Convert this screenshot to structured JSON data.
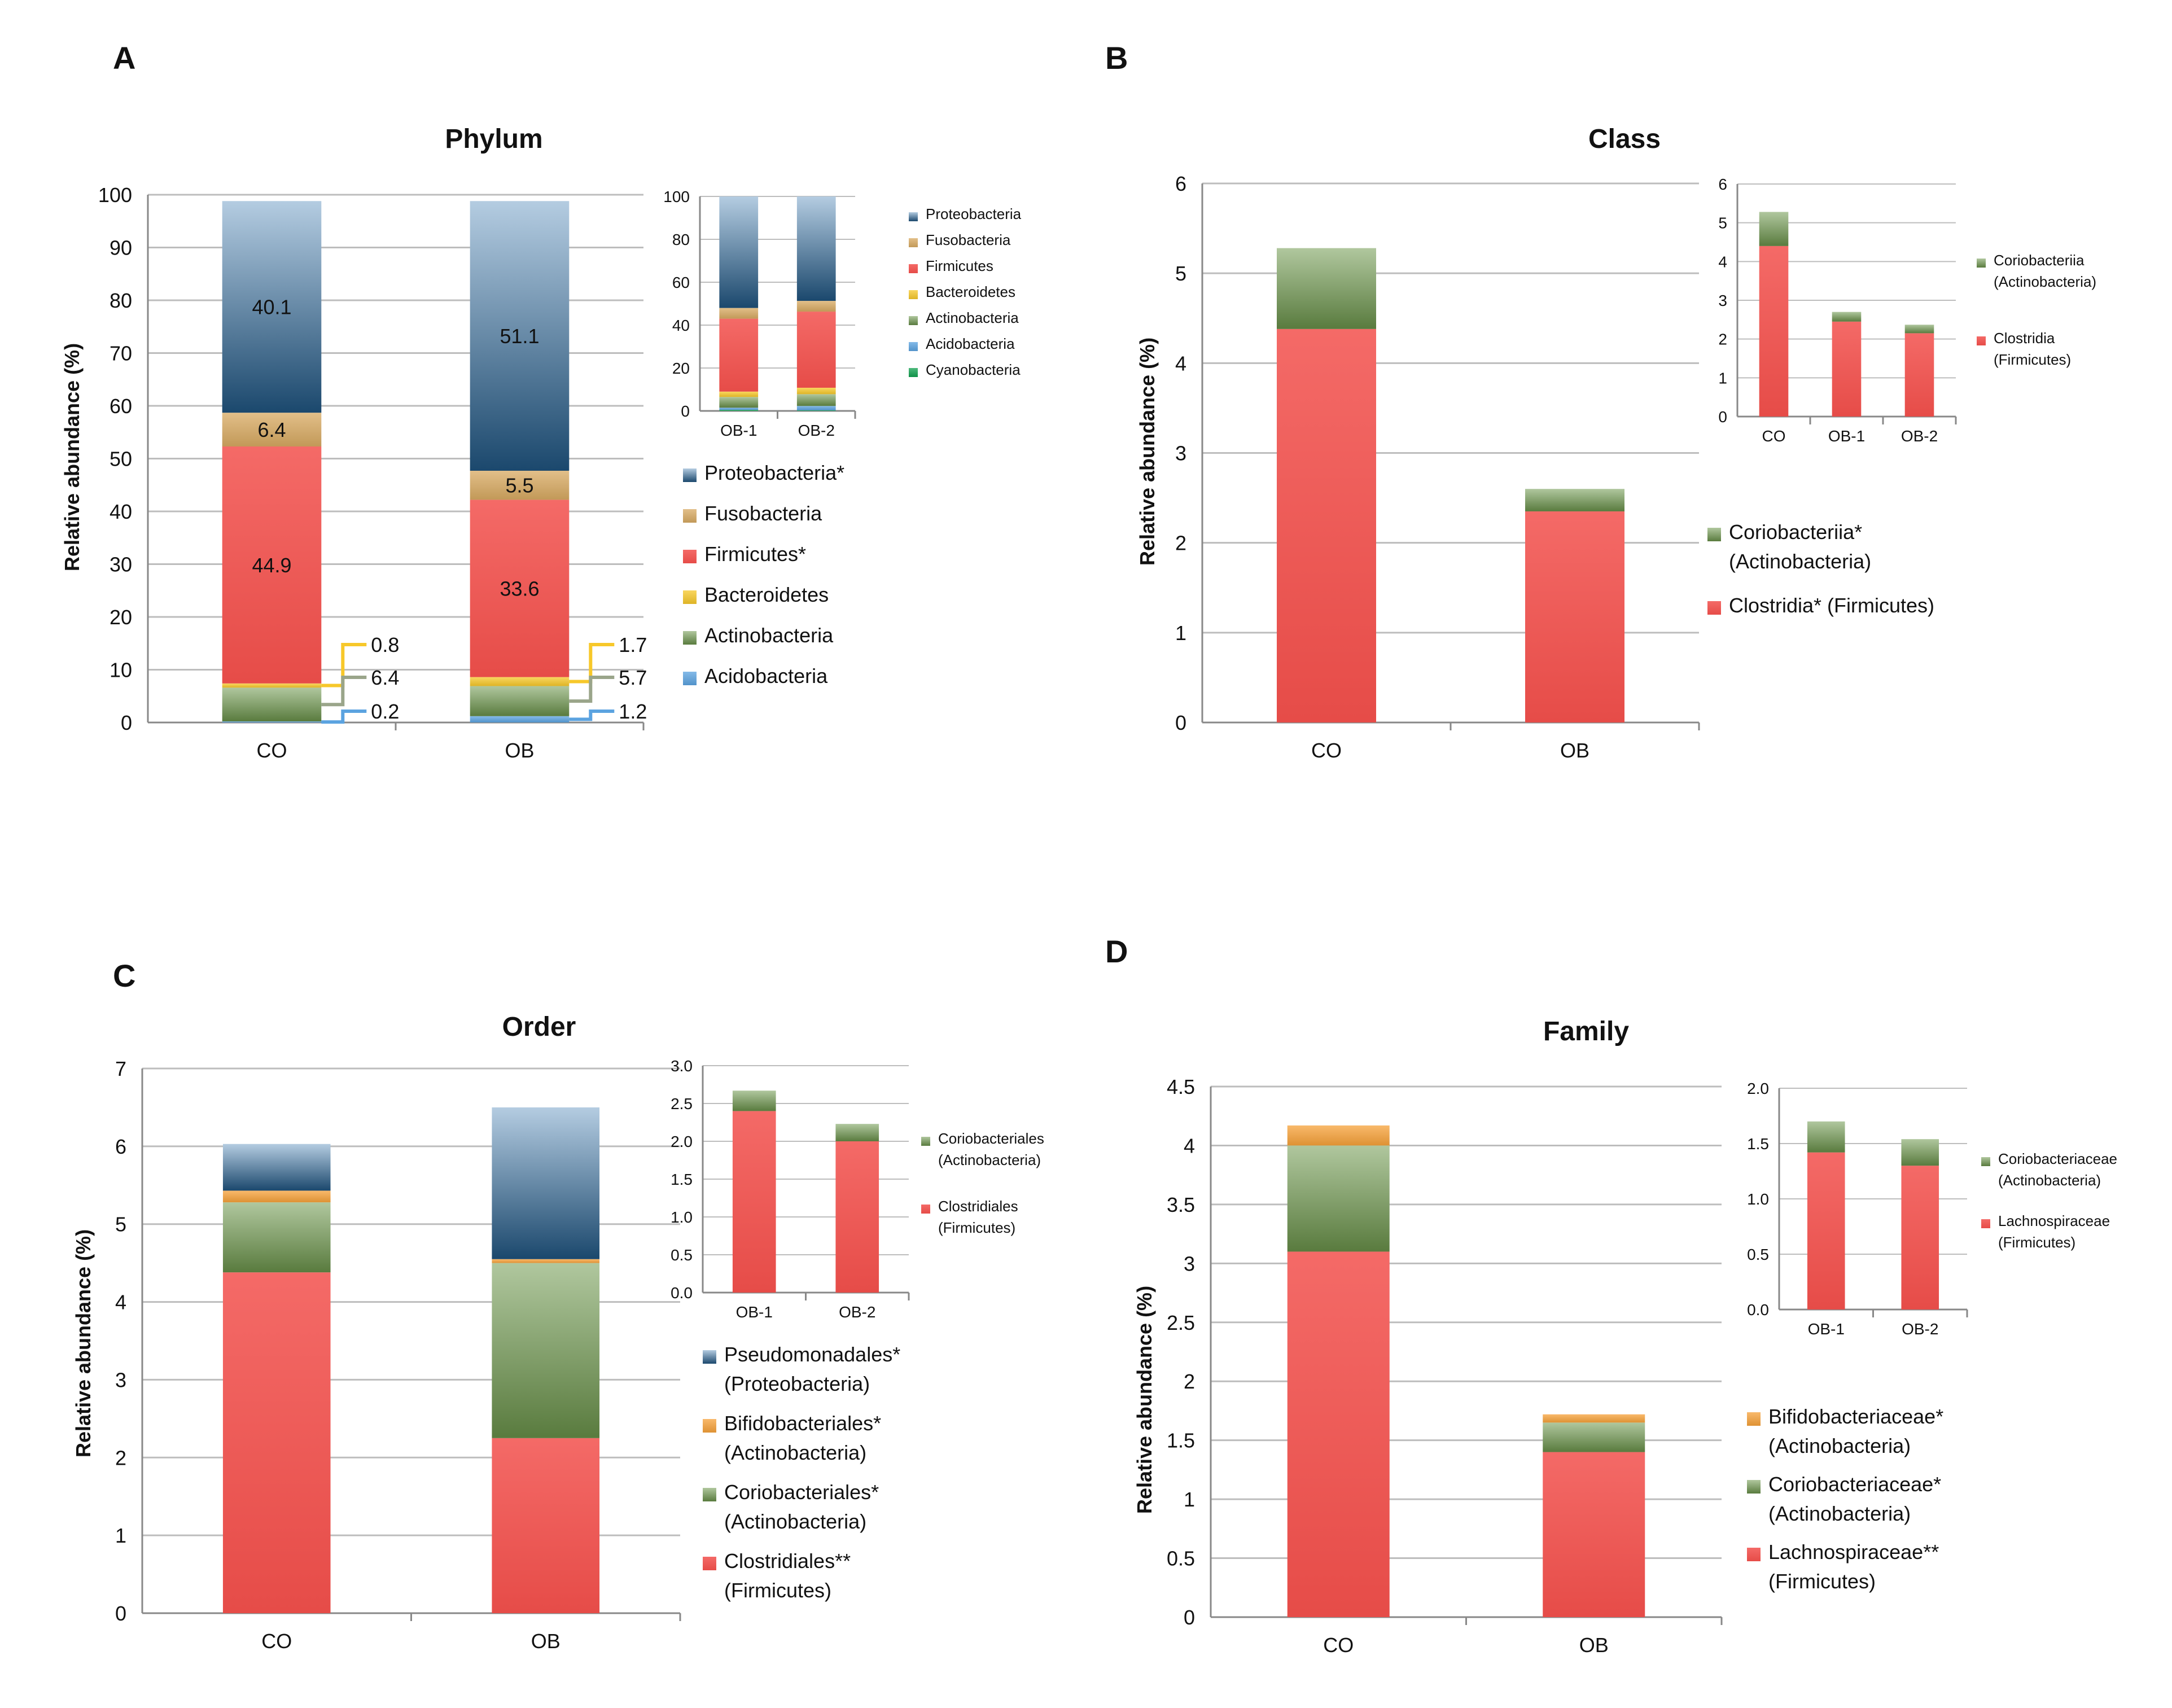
{
  "colors": {
    "Proteobacteria": "#2a6ea8",
    "Fusobacteria": "#d8aa62",
    "Firmicutes": "#f2504c",
    "Bacteroidetes": "#f7c82a",
    "Actinobacteria": "#6f9a4e",
    "Acidobacteria": "#5ba3e0",
    "Cyanobacteria": "#12a150",
    "Bifido": "#f7a23a"
  },
  "chart_data": [
    {
      "panel": "A",
      "title": "Phylum",
      "type": "bar",
      "stacked": true,
      "ylabel": "Relative abundance (%)",
      "ylim": [
        0,
        100
      ],
      "yticks": [
        "0",
        "10",
        "20",
        "30",
        "40",
        "50",
        "60",
        "70",
        "80",
        "90",
        "100"
      ],
      "categories": [
        "CO",
        "OB"
      ],
      "series": [
        {
          "name": "Acidobacteria",
          "color_key": "Acidobacteria",
          "values": [
            0.2,
            1.2
          ]
        },
        {
          "name": "Actinobacteria",
          "color_key": "Actinobacteria",
          "values": [
            6.4,
            5.7
          ]
        },
        {
          "name": "Bacteroidetes",
          "color_key": "Bacteroidetes",
          "values": [
            0.8,
            1.7
          ]
        },
        {
          "name": "Firmicutes*",
          "color_key": "Firmicutes",
          "values": [
            44.9,
            33.6
          ]
        },
        {
          "name": "Fusobacteria",
          "color_key": "Fusobacteria",
          "values": [
            6.4,
            5.5
          ]
        },
        {
          "name": "Proteobacteria*",
          "color_key": "Proteobacteria",
          "values": [
            40.1,
            51.1
          ]
        }
      ],
      "bar_labels": [
        [
          "",
          "",
          "",
          "44.9",
          "6.4",
          "40.1"
        ],
        [
          "",
          "",
          "",
          "33.6",
          "5.5",
          "51.1"
        ]
      ],
      "callouts": [
        [
          "0.8",
          "6.4",
          "0.2"
        ],
        [
          "1.7",
          "5.7",
          "1.2"
        ]
      ],
      "legend": [
        "Proteobacteria*",
        "Fusobacteria",
        "Firmicutes*",
        "Bacteroidetes",
        "Actinobacteria",
        "Acidobacteria"
      ],
      "inset": {
        "ylim": [
          0,
          100
        ],
        "yticks": [
          "0",
          "20",
          "40",
          "60",
          "80",
          "100"
        ],
        "categories": [
          "OB-1",
          "OB-2"
        ],
        "series": [
          {
            "name": "Cyanobacteria",
            "color_key": "Cyanobacteria",
            "values": [
              0.5,
              0.3
            ]
          },
          {
            "name": "Acidobacteria",
            "color_key": "Acidobacteria",
            "values": [
              1.0,
              2.0
            ]
          },
          {
            "name": "Actinobacteria",
            "color_key": "Actinobacteria",
            "values": [
              5.0,
              5.5
            ]
          },
          {
            "name": "Bacteroidetes",
            "color_key": "Bacteroidetes",
            "values": [
              2.5,
              3.0
            ]
          },
          {
            "name": "Firmicutes",
            "color_key": "Firmicutes",
            "values": [
              34.0,
              35.5
            ]
          },
          {
            "name": "Fusobacteria",
            "color_key": "Fusobacteria",
            "values": [
              5.0,
              5.0
            ]
          },
          {
            "name": "Proteobacteria",
            "color_key": "Proteobacteria",
            "values": [
              52.0,
              48.7
            ]
          }
        ],
        "legend": [
          "Proteobacteria",
          "Fusobacteria",
          "Firmicutes",
          "Bacteroidetes",
          "Actinobacteria",
          "Acidobacteria",
          "Cyanobacteria"
        ]
      }
    },
    {
      "panel": "B",
      "title": "Class",
      "type": "bar",
      "stacked": true,
      "ylabel": "Relative abundance (%)",
      "ylim": [
        0,
        6
      ],
      "yticks": [
        "0",
        "1",
        "2",
        "3",
        "4",
        "5",
        "6"
      ],
      "categories": [
        "CO",
        "OB"
      ],
      "series": [
        {
          "name": "Clostridia* (Firmicutes)",
          "color_key": "Firmicutes",
          "values": [
            4.38,
            2.35
          ]
        },
        {
          "name": "Coriobacteriia* (Actinobacteria)",
          "color_key": "Actinobacteria",
          "values": [
            0.9,
            0.25
          ]
        }
      ],
      "legend": [
        [
          "Coriobacteriia*",
          "(Actinobacteria)"
        ],
        [
          "Clostridia* (Firmicutes)"
        ]
      ],
      "inset": {
        "ylim": [
          0,
          6
        ],
        "yticks": [
          "0",
          "1",
          "2",
          "3",
          "4",
          "5",
          "6"
        ],
        "categories": [
          "CO",
          "OB-1",
          "OB-2"
        ],
        "series": [
          {
            "name": "Clostridia",
            "color_key": "Firmicutes",
            "values": [
              4.4,
              2.45,
              2.15
            ]
          },
          {
            "name": "Coriobacteriia",
            "color_key": "Actinobacteria",
            "values": [
              0.88,
              0.25,
              0.22
            ]
          }
        ],
        "legend": [
          [
            "Coriobacteriia",
            "(Actinobacteria)"
          ],
          [
            "Clostridia",
            "(Firmicutes)"
          ]
        ]
      }
    },
    {
      "panel": "C",
      "title": "Order",
      "type": "bar",
      "stacked": true,
      "ylabel": "Relative abundance (%)",
      "ylim": [
        0,
        7
      ],
      "yticks": [
        "0",
        "1",
        "2",
        "3",
        "4",
        "5",
        "6",
        "7"
      ],
      "categories": [
        "CO",
        "OB"
      ],
      "series": [
        {
          "name": "Clostridiales** (Firmicutes)",
          "color_key": "Firmicutes",
          "values": [
            4.38,
            2.25
          ]
        },
        {
          "name": "Coriobacteriales* (Actinobacteria)",
          "color_key": "Actinobacteria",
          "values": [
            0.9,
            2.25
          ]
        },
        {
          "name": "Bifidobacteriales* (Actinobacteria)",
          "color_key": "Bifido",
          "values": [
            0.15,
            0.05
          ]
        },
        {
          "name": "Pseudomonadales* (Proteobacteria)",
          "color_key": "Proteobacteria",
          "values": [
            0.6,
            1.95
          ]
        }
      ],
      "legend": [
        [
          "Pseudomonadales*",
          "(Proteobacteria)"
        ],
        [
          "Bifidobacteriales*",
          "(Actinobacteria)"
        ],
        [
          "Coriobacteriales*",
          "(Actinobacteria)"
        ],
        [
          "Clostridiales**",
          "(Firmicutes)"
        ]
      ],
      "inset": {
        "ylim": [
          0,
          3.0
        ],
        "yticks": [
          "0.0",
          "0.5",
          "1.0",
          "1.5",
          "2.0",
          "2.5",
          "3.0"
        ],
        "categories": [
          "OB-1",
          "OB-2"
        ],
        "series": [
          {
            "name": "Clostridiales",
            "color_key": "Firmicutes",
            "values": [
              2.4,
              2.0
            ]
          },
          {
            "name": "Coriobacteriales",
            "color_key": "Actinobacteria",
            "values": [
              0.27,
              0.23
            ]
          }
        ],
        "legend": [
          [
            "Coriobacteriales",
            "(Actinobacteria)"
          ],
          [
            "Clostridiales",
            "(Firmicutes)"
          ]
        ]
      }
    },
    {
      "panel": "D",
      "title": "Family",
      "type": "bar",
      "stacked": true,
      "ylabel": "Relative abundance (%)",
      "ylim": [
        0,
        4.5
      ],
      "yticks": [
        "0",
        "0.5",
        "1",
        "1.5",
        "2",
        "2.5",
        "3",
        "3.5",
        "4",
        "4.5"
      ],
      "categories": [
        "CO",
        "OB"
      ],
      "series": [
        {
          "name": "Lachnospiraceae** (Firmicutes)",
          "color_key": "Firmicutes",
          "values": [
            3.1,
            1.4
          ]
        },
        {
          "name": "Coriobacteriaceae* (Actinobacteria)",
          "color_key": "Actinobacteria",
          "values": [
            0.9,
            0.25
          ]
        },
        {
          "name": "Bifidobacteriaceae* (Actinobacteria)",
          "color_key": "Bifido",
          "values": [
            0.17,
            0.07
          ]
        }
      ],
      "legend": [
        [
          "Bifidobacteriaceae*",
          "(Actinobacteria)"
        ],
        [
          "Coriobacteriaceae*",
          "(Actinobacteria)"
        ],
        [
          "Lachnospiraceae**",
          "(Firmicutes)"
        ]
      ],
      "inset": {
        "ylim": [
          0,
          2.0
        ],
        "yticks": [
          "0.0",
          "0.5",
          "1.0",
          "1.5",
          "2.0"
        ],
        "categories": [
          "OB-1",
          "OB-2"
        ],
        "series": [
          {
            "name": "Lachnospiraceae",
            "color_key": "Firmicutes",
            "values": [
              1.42,
              1.3
            ]
          },
          {
            "name": "Coriobacteriaceae",
            "color_key": "Actinobacteria",
            "values": [
              0.28,
              0.24
            ]
          }
        ],
        "legend": [
          [
            "Coriobacteriaceae",
            "(Actinobacteria)"
          ],
          [
            "Lachnospiraceae",
            "(Firmicutes)"
          ]
        ]
      }
    }
  ]
}
